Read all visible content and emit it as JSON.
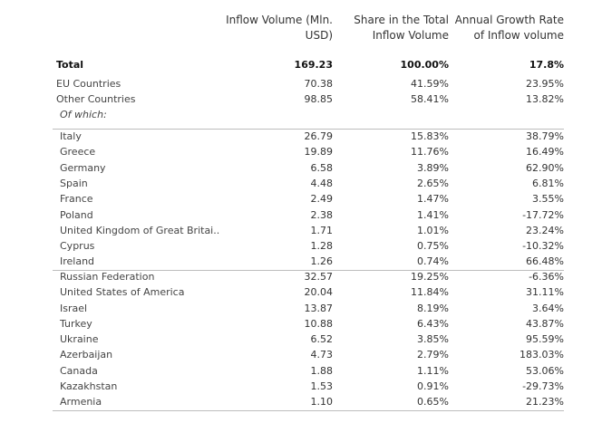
{
  "headers": {
    "inflow_volume": "Inflow Volume (Mln.\nUSD)",
    "share": "Share in the Total\nInflow Volume",
    "growth": "Annual Growth Rate\nof Inflow volume"
  },
  "summary": [
    {
      "label": "Total",
      "volume": "169.23",
      "share": "100.00%",
      "growth": "17.8%"
    },
    {
      "label": "EU Countries",
      "volume": "70.38",
      "share": "41.59%",
      "growth": "23.95%"
    },
    {
      "label": "Other Countries",
      "volume": "98.85",
      "share": "58.41%",
      "growth": "13.82%"
    }
  ],
  "of_which_label": "Of which:",
  "eu_countries": [
    {
      "label": "Italy",
      "volume": "26.79",
      "share": "15.83%",
      "growth": "38.79%"
    },
    {
      "label": "Greece",
      "volume": "19.89",
      "share": "11.76%",
      "growth": "16.49%"
    },
    {
      "label": "Germany",
      "volume": "6.58",
      "share": "3.89%",
      "growth": "62.90%"
    },
    {
      "label": "Spain",
      "volume": "4.48",
      "share": "2.65%",
      "growth": "6.81%"
    },
    {
      "label": "France",
      "volume": "2.49",
      "share": "1.47%",
      "growth": "3.55%"
    },
    {
      "label": "Poland",
      "volume": "2.38",
      "share": "1.41%",
      "growth": "-17.72%"
    },
    {
      "label": "United Kingdom of Great Britai..",
      "volume": "1.71",
      "share": "1.01%",
      "growth": "23.24%"
    },
    {
      "label": "Cyprus",
      "volume": "1.28",
      "share": "0.75%",
      "growth": "-10.32%"
    },
    {
      "label": "Ireland",
      "volume": "1.26",
      "share": "0.74%",
      "growth": "66.48%"
    }
  ],
  "other_countries": [
    {
      "label": "Russian Federation",
      "volume": "32.57",
      "share": "19.25%",
      "growth": "-6.36%"
    },
    {
      "label": "United States of America",
      "volume": "20.04",
      "share": "11.84%",
      "growth": "31.11%"
    },
    {
      "label": "Israel",
      "volume": "13.87",
      "share": "8.19%",
      "growth": "3.64%"
    },
    {
      "label": "Turkey",
      "volume": "10.88",
      "share": "6.43%",
      "growth": "43.87%"
    },
    {
      "label": "Ukraine",
      "volume": "6.52",
      "share": "3.85%",
      "growth": "95.59%"
    },
    {
      "label": "Azerbaijan",
      "volume": "4.73",
      "share": "2.79%",
      "growth": "183.03%"
    },
    {
      "label": "Canada",
      "volume": "1.88",
      "share": "1.11%",
      "growth": "53.06%"
    },
    {
      "label": "Kazakhstan",
      "volume": "1.53",
      "share": "0.91%",
      "growth": "-29.73%"
    },
    {
      "label": "Armenia",
      "volume": "1.10",
      "share": "0.65%",
      "growth": "21.23%"
    }
  ]
}
